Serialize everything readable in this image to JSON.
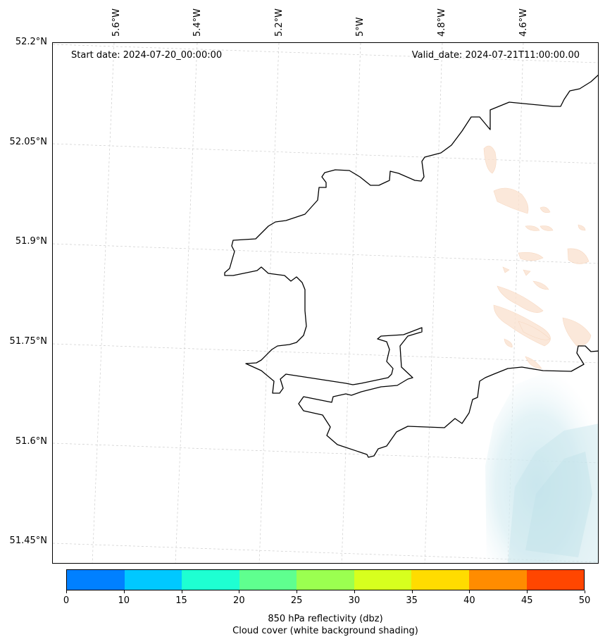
{
  "map": {
    "start_date": "Start date: 2024-07-20_00:00:00",
    "valid_date": "Valid_date: 2024-07-21T11:00:00.00",
    "lon_ticks": [
      "5.6°W",
      "5.4°W",
      "5.2°W",
      "5°W",
      "4.8°W",
      "4.6°W"
    ],
    "lat_ticks": [
      "52.2°N",
      "52.05°N",
      "51.9°N",
      "51.75°N",
      "51.6°N",
      "51.45°N"
    ],
    "coastline_color": "#000000",
    "gridline_color": "#cccccc"
  },
  "colorbar": {
    "ticks": [
      "0",
      "10",
      "15",
      "20",
      "25",
      "30",
      "35",
      "40",
      "45",
      "50"
    ],
    "colors": [
      "#0080ff",
      "#00c8ff",
      "#1effd2",
      "#5fff8f",
      "#9bff50",
      "#d7ff1e",
      "#ffdc00",
      "#ff8c00",
      "#ff4600"
    ],
    "label_line1": "850 hPa reflectivity (dbz)",
    "label_line2": "Cloud cover (white background shading)"
  }
}
